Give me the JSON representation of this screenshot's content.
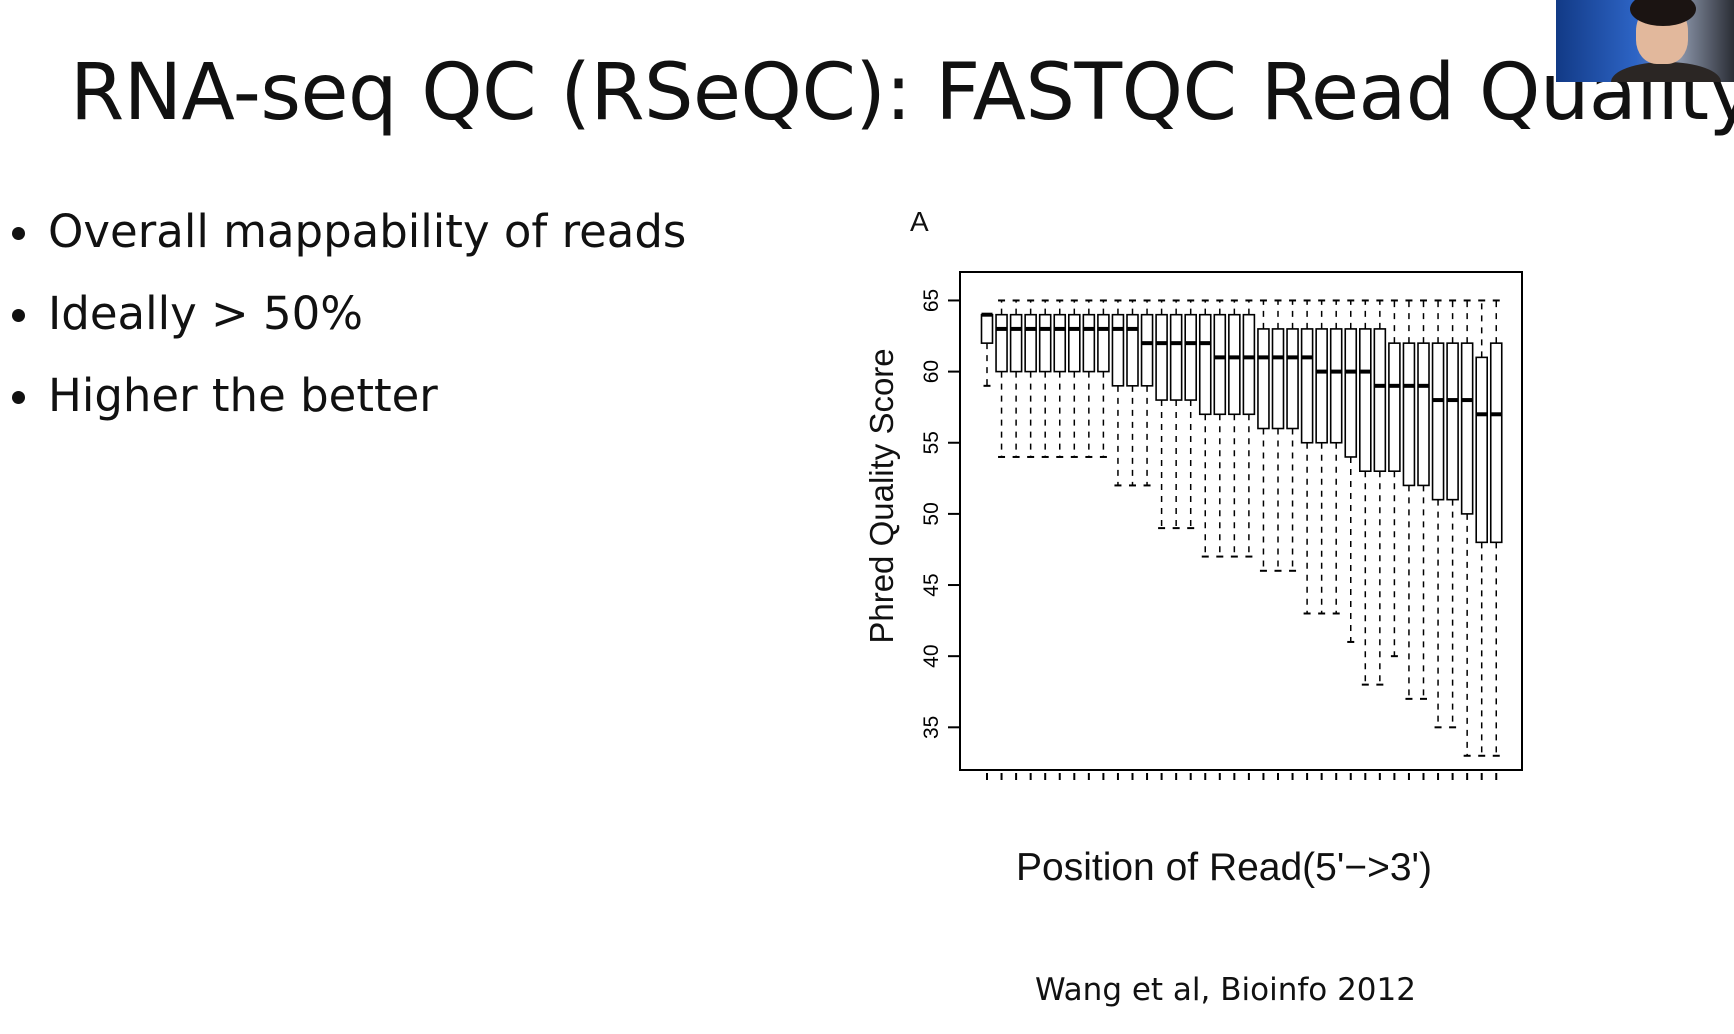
{
  "slide": {
    "title": "RNA-seq QC (RSeQC): FASTQC Read Quality",
    "bullets": [
      "Overall mappability of reads",
      "Ideally > 50%",
      "Higher the better"
    ],
    "citation": "Wang et al, Bioinfo 2012"
  },
  "figure": {
    "panel_label": "A"
  },
  "chart_data": {
    "type": "box",
    "xlabel": "Position of Read(5'−>3')",
    "ylabel": "Phred Quality Score",
    "ylim": [
      32,
      67
    ],
    "yticks": [
      35,
      40,
      45,
      50,
      55,
      60,
      65
    ],
    "grid": false,
    "boxes": [
      {
        "q1": 62,
        "median": 64,
        "q3": 64,
        "low": 59,
        "high": 64
      },
      {
        "q1": 60,
        "median": 63,
        "q3": 64,
        "low": 54,
        "high": 65
      },
      {
        "q1": 60,
        "median": 63,
        "q3": 64,
        "low": 54,
        "high": 65
      },
      {
        "q1": 60,
        "median": 63,
        "q3": 64,
        "low": 54,
        "high": 65
      },
      {
        "q1": 60,
        "median": 63,
        "q3": 64,
        "low": 54,
        "high": 65
      },
      {
        "q1": 60,
        "median": 63,
        "q3": 64,
        "low": 54,
        "high": 65
      },
      {
        "q1": 60,
        "median": 63,
        "q3": 64,
        "low": 54,
        "high": 65
      },
      {
        "q1": 60,
        "median": 63,
        "q3": 64,
        "low": 54,
        "high": 65
      },
      {
        "q1": 60,
        "median": 63,
        "q3": 64,
        "low": 54,
        "high": 65
      },
      {
        "q1": 59,
        "median": 63,
        "q3": 64,
        "low": 52,
        "high": 65
      },
      {
        "q1": 59,
        "median": 63,
        "q3": 64,
        "low": 52,
        "high": 65
      },
      {
        "q1": 59,
        "median": 62,
        "q3": 64,
        "low": 52,
        "high": 65
      },
      {
        "q1": 58,
        "median": 62,
        "q3": 64,
        "low": 49,
        "high": 65
      },
      {
        "q1": 58,
        "median": 62,
        "q3": 64,
        "low": 49,
        "high": 65
      },
      {
        "q1": 58,
        "median": 62,
        "q3": 64,
        "low": 49,
        "high": 65
      },
      {
        "q1": 57,
        "median": 62,
        "q3": 64,
        "low": 47,
        "high": 65
      },
      {
        "q1": 57,
        "median": 61,
        "q3": 64,
        "low": 47,
        "high": 65
      },
      {
        "q1": 57,
        "median": 61,
        "q3": 64,
        "low": 47,
        "high": 65
      },
      {
        "q1": 57,
        "median": 61,
        "q3": 64,
        "low": 47,
        "high": 65
      },
      {
        "q1": 56,
        "median": 61,
        "q3": 63,
        "low": 46,
        "high": 65
      },
      {
        "q1": 56,
        "median": 61,
        "q3": 63,
        "low": 46,
        "high": 65
      },
      {
        "q1": 56,
        "median": 61,
        "q3": 63,
        "low": 46,
        "high": 65
      },
      {
        "q1": 55,
        "median": 61,
        "q3": 63,
        "low": 43,
        "high": 65
      },
      {
        "q1": 55,
        "median": 60,
        "q3": 63,
        "low": 43,
        "high": 65
      },
      {
        "q1": 55,
        "median": 60,
        "q3": 63,
        "low": 43,
        "high": 65
      },
      {
        "q1": 54,
        "median": 60,
        "q3": 63,
        "low": 41,
        "high": 65
      },
      {
        "q1": 53,
        "median": 60,
        "q3": 63,
        "low": 38,
        "high": 65
      },
      {
        "q1": 53,
        "median": 59,
        "q3": 63,
        "low": 38,
        "high": 65
      },
      {
        "q1": 53,
        "median": 59,
        "q3": 62,
        "low": 40,
        "high": 65
      },
      {
        "q1": 52,
        "median": 59,
        "q3": 62,
        "low": 37,
        "high": 65
      },
      {
        "q1": 52,
        "median": 59,
        "q3": 62,
        "low": 37,
        "high": 65
      },
      {
        "q1": 51,
        "median": 58,
        "q3": 62,
        "low": 35,
        "high": 65
      },
      {
        "q1": 51,
        "median": 58,
        "q3": 62,
        "low": 35,
        "high": 65
      },
      {
        "q1": 50,
        "median": 58,
        "q3": 62,
        "low": 33,
        "high": 65
      },
      {
        "q1": 48,
        "median": 57,
        "q3": 61,
        "low": 33,
        "high": 65
      },
      {
        "q1": 48,
        "median": 57,
        "q3": 62,
        "low": 33,
        "high": 65
      }
    ]
  }
}
